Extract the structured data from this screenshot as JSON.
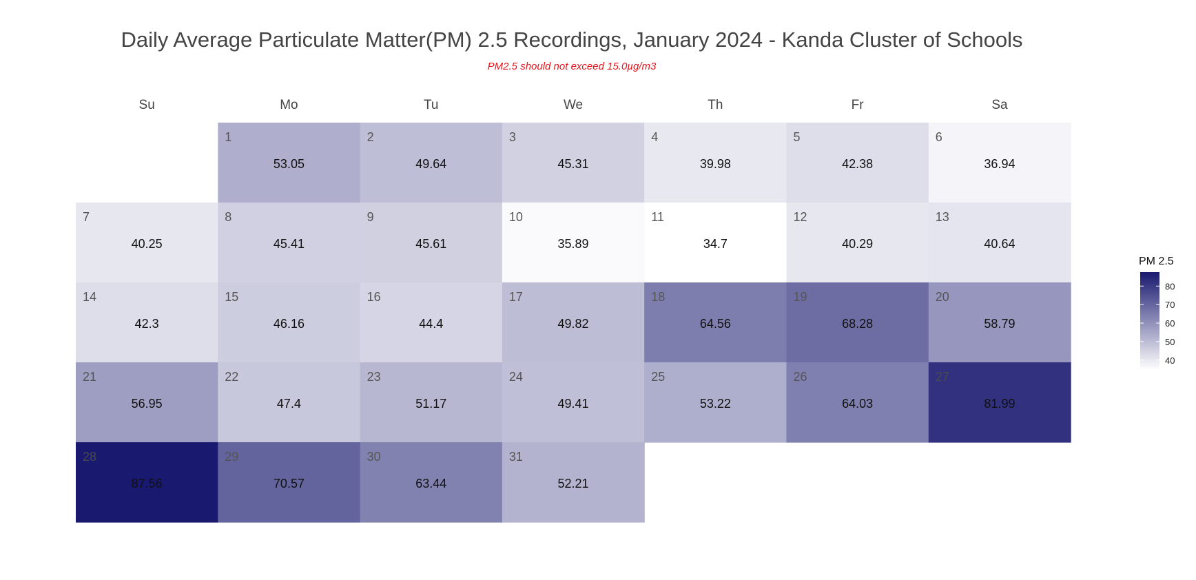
{
  "chart_data": {
    "type": "heatmap",
    "title": "Daily Average Particulate Matter(PM) 2.5 Recordings, January 2024 - Kanda Cluster of Schools",
    "subtitle": "PM2.5 should not exceed 15.0µg/m3",
    "weekdays": [
      "Su",
      "Mo",
      "Tu",
      "We",
      "Th",
      "Fr",
      "Sa"
    ],
    "first_weekday_index": 1,
    "days": [
      1,
      2,
      3,
      4,
      5,
      6,
      7,
      8,
      9,
      10,
      11,
      12,
      13,
      14,
      15,
      16,
      17,
      18,
      19,
      20,
      21,
      22,
      23,
      24,
      25,
      26,
      27,
      28,
      29,
      30,
      31
    ],
    "values": [
      53.05,
      49.64,
      45.31,
      39.98,
      42.38,
      36.94,
      40.25,
      45.41,
      45.61,
      35.89,
      34.7,
      40.29,
      40.64,
      42.3,
      46.16,
      44.4,
      49.82,
      64.56,
      68.28,
      58.79,
      56.95,
      47.4,
      51.17,
      49.41,
      53.22,
      64.03,
      81.99,
      87.56,
      70.57,
      63.44,
      52.21
    ],
    "value_labels": [
      "53.05",
      "49.64",
      "45.31",
      "39.98",
      "42.38",
      "36.94",
      "40.25",
      "45.41",
      "45.61",
      "35.89",
      "34.7",
      "40.29",
      "40.64",
      "42.3",
      "46.16",
      "44.4",
      "49.82",
      "64.56",
      "68.28",
      "58.79",
      "56.95",
      "47.4",
      "51.17",
      "49.41",
      "53.22",
      "64.03",
      "81.99",
      "87.56",
      "70.57",
      "63.44",
      "52.21"
    ],
    "legend": {
      "title": "PM 2.5",
      "ticks": [
        40,
        50,
        60,
        70,
        80
      ],
      "range": [
        34.7,
        87.56
      ],
      "color_low": "#ffffff",
      "color_high": "#191970",
      "placement": "right"
    }
  }
}
